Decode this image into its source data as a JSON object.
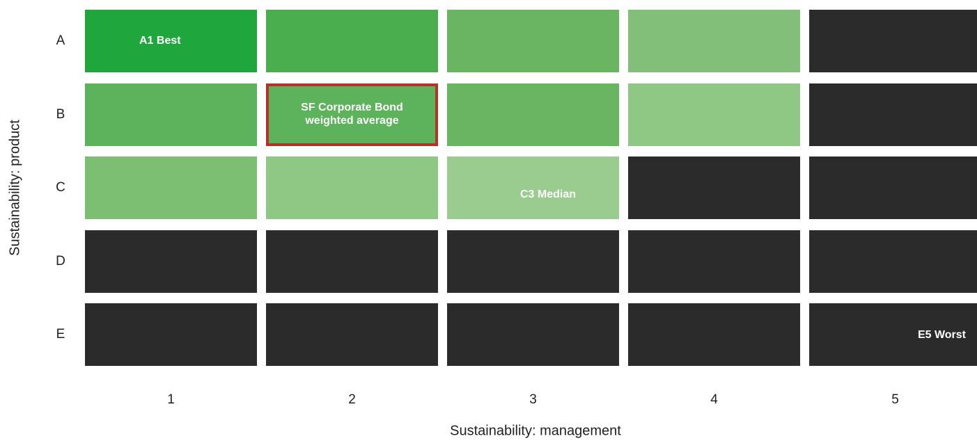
{
  "chart_data": {
    "type": "heatmap",
    "xlabel": "Sustainability: management",
    "ylabel": "Sustainability: product",
    "rows": [
      "A",
      "B",
      "C",
      "D",
      "E"
    ],
    "columns": [
      "1",
      "2",
      "3",
      "4",
      "5"
    ],
    "legend": "none",
    "grid": false,
    "cells": [
      {
        "row": "A",
        "col": "1",
        "color": "#1fa73d",
        "label": "A1 Best"
      },
      {
        "row": "A",
        "col": "2",
        "color": "#4aae4f",
        "label": ""
      },
      {
        "row": "A",
        "col": "3",
        "color": "#69b562",
        "label": ""
      },
      {
        "row": "A",
        "col": "4",
        "color": "#82c07a",
        "label": ""
      },
      {
        "row": "A",
        "col": "5",
        "color": "#2b2b2b",
        "label": ""
      },
      {
        "row": "B",
        "col": "1",
        "color": "#5cb35b",
        "label": ""
      },
      {
        "row": "B",
        "col": "2",
        "color": "#5cb35b",
        "label": "SF Corporate Bond\nweighted average",
        "highlight": true,
        "highlight_color": "#b5322b"
      },
      {
        "row": "B",
        "col": "3",
        "color": "#69b562",
        "label": ""
      },
      {
        "row": "B",
        "col": "4",
        "color": "#8fc784",
        "label": ""
      },
      {
        "row": "B",
        "col": "5",
        "color": "#2b2b2b",
        "label": ""
      },
      {
        "row": "C",
        "col": "1",
        "color": "#7cbf73",
        "label": ""
      },
      {
        "row": "C",
        "col": "2",
        "color": "#8fc784",
        "label": ""
      },
      {
        "row": "C",
        "col": "3",
        "color": "#99cc8e",
        "label": "C3 Median"
      },
      {
        "row": "C",
        "col": "4",
        "color": "#2b2b2b",
        "label": ""
      },
      {
        "row": "C",
        "col": "5",
        "color": "#2b2b2b",
        "label": ""
      },
      {
        "row": "D",
        "col": "1",
        "color": "#2b2b2b",
        "label": ""
      },
      {
        "row": "D",
        "col": "2",
        "color": "#2b2b2b",
        "label": ""
      },
      {
        "row": "D",
        "col": "3",
        "color": "#2b2b2b",
        "label": ""
      },
      {
        "row": "D",
        "col": "4",
        "color": "#2b2b2b",
        "label": ""
      },
      {
        "row": "D",
        "col": "5",
        "color": "#2b2b2b",
        "label": ""
      },
      {
        "row": "E",
        "col": "1",
        "color": "#2b2b2b",
        "label": ""
      },
      {
        "row": "E",
        "col": "2",
        "color": "#2b2b2b",
        "label": ""
      },
      {
        "row": "E",
        "col": "3",
        "color": "#2b2b2b",
        "label": ""
      },
      {
        "row": "E",
        "col": "4",
        "color": "#2b2b2b",
        "label": ""
      },
      {
        "row": "E",
        "col": "5",
        "color": "#2b2b2b",
        "label": "E5 Worst"
      }
    ]
  }
}
